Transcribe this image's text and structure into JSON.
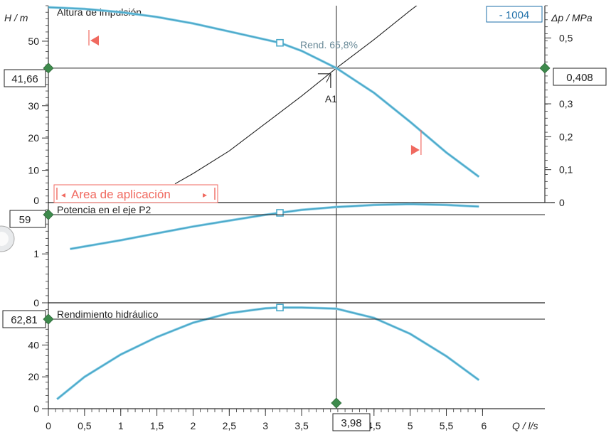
{
  "colors": {
    "axis": "#333333",
    "frame": "#222222",
    "curve": "#4aa8c8",
    "curve_light": "#8fd0e8",
    "accent_red": "#f06a60",
    "system_curve": "#222222",
    "op_marker": "#3d8a4c",
    "badge_text": "#1e6fa8"
  },
  "chart_data": [
    {
      "type": "line",
      "title": "Altura de impulsión",
      "ylabel": "H / m",
      "ylabel_right": "Δp / MPa",
      "badge": "- 1004",
      "ylim": [
        0,
        61
      ],
      "yticks": [
        10,
        20,
        30,
        50
      ],
      "yticks_right": [
        0,
        0.1,
        0.2,
        0.3,
        0.5
      ],
      "yticks_right_labels": [
        "0",
        "0,1",
        "0,2",
        "0,3",
        "0,5"
      ],
      "xlim": [
        0,
        6.3
      ],
      "series": [
        {
          "x": [
            0,
            0.5,
            1,
            1.5,
            2,
            2.5,
            3,
            3.2,
            3.5,
            3.98,
            4.5,
            5,
            5.5,
            5.95
          ],
          "y": [
            60.5,
            60.0,
            59.0,
            57.5,
            55.5,
            53.0,
            50.5,
            49.5,
            47.0,
            41.66,
            34.0,
            25.0,
            15.5,
            8.0
          ]
        }
      ],
      "system_curve": {
        "x": [
          1.75,
          2,
          2.5,
          3,
          3.5,
          3.98,
          4.5,
          5,
          5.5
        ],
        "y": [
          5.8,
          9.0,
          16.0,
          24.5,
          33.0,
          41.66,
          50.5,
          59.5,
          68.0
        ]
      },
      "operating_point": {
        "x": 3.98,
        "y": 41.66,
        "label": "A1"
      },
      "left_readout": "41,66",
      "right_readout": "0,408",
      "efficiency_label": "Rend. 65,8%",
      "best_point": {
        "x": 3.2,
        "y": 49.5
      },
      "application_range": {
        "label": "Area de aplicación",
        "x_start": 0.58,
        "x_end": 5.15
      }
    },
    {
      "type": "line",
      "title": "Potencia en el eje P2",
      "ylim": [
        0,
        2.05
      ],
      "yticks": [
        0,
        1
      ],
      "yticks_labels": [
        "0",
        "1"
      ],
      "xlim": [
        0,
        6.3
      ],
      "series": [
        {
          "x": [
            0.3,
            1,
            1.5,
            2,
            2.5,
            3,
            3.2,
            3.5,
            3.98,
            4.5,
            5,
            5.5,
            5.95
          ],
          "y": [
            1.1,
            1.28,
            1.42,
            1.56,
            1.68,
            1.8,
            1.84,
            1.9,
            1.96,
            2.0,
            2.02,
            2.0,
            1.97
          ]
        }
      ],
      "left_readout": "59",
      "best_point": {
        "x": 3.2,
        "y": 1.84
      }
    },
    {
      "type": "line",
      "title": "Rendimiento hidráulico",
      "ylim": [
        0,
        66.5
      ],
      "yticks": [
        0,
        20,
        40
      ],
      "yticks_labels": [
        "0",
        "20",
        "40"
      ],
      "xlim": [
        0,
        6.3
      ],
      "xlabel": "Q / l/s",
      "xticks": [
        0,
        0.5,
        1,
        1.5,
        2,
        2.5,
        3,
        3.5,
        4.5,
        5,
        5.5,
        6
      ],
      "xticks_labels": [
        "0",
        "0,5",
        "1",
        "1,5",
        "2",
        "2,5",
        "3",
        "3,5",
        "4,5",
        "5",
        "5,5",
        "6"
      ],
      "series": [
        {
          "x": [
            0.12,
            0.5,
            1,
            1.5,
            2,
            2.5,
            3,
            3.2,
            3.5,
            3.98,
            4.5,
            5,
            5.5,
            5.95
          ],
          "y": [
            6.0,
            20.0,
            34.0,
            45.0,
            54.0,
            60.0,
            63.0,
            63.5,
            63.5,
            62.81,
            57.0,
            47.0,
            33.0,
            18.0
          ]
        }
      ],
      "left_readout": "62,81",
      "x_readout": "3,98",
      "best_point": {
        "x": 3.2,
        "y": 63.5
      }
    }
  ]
}
